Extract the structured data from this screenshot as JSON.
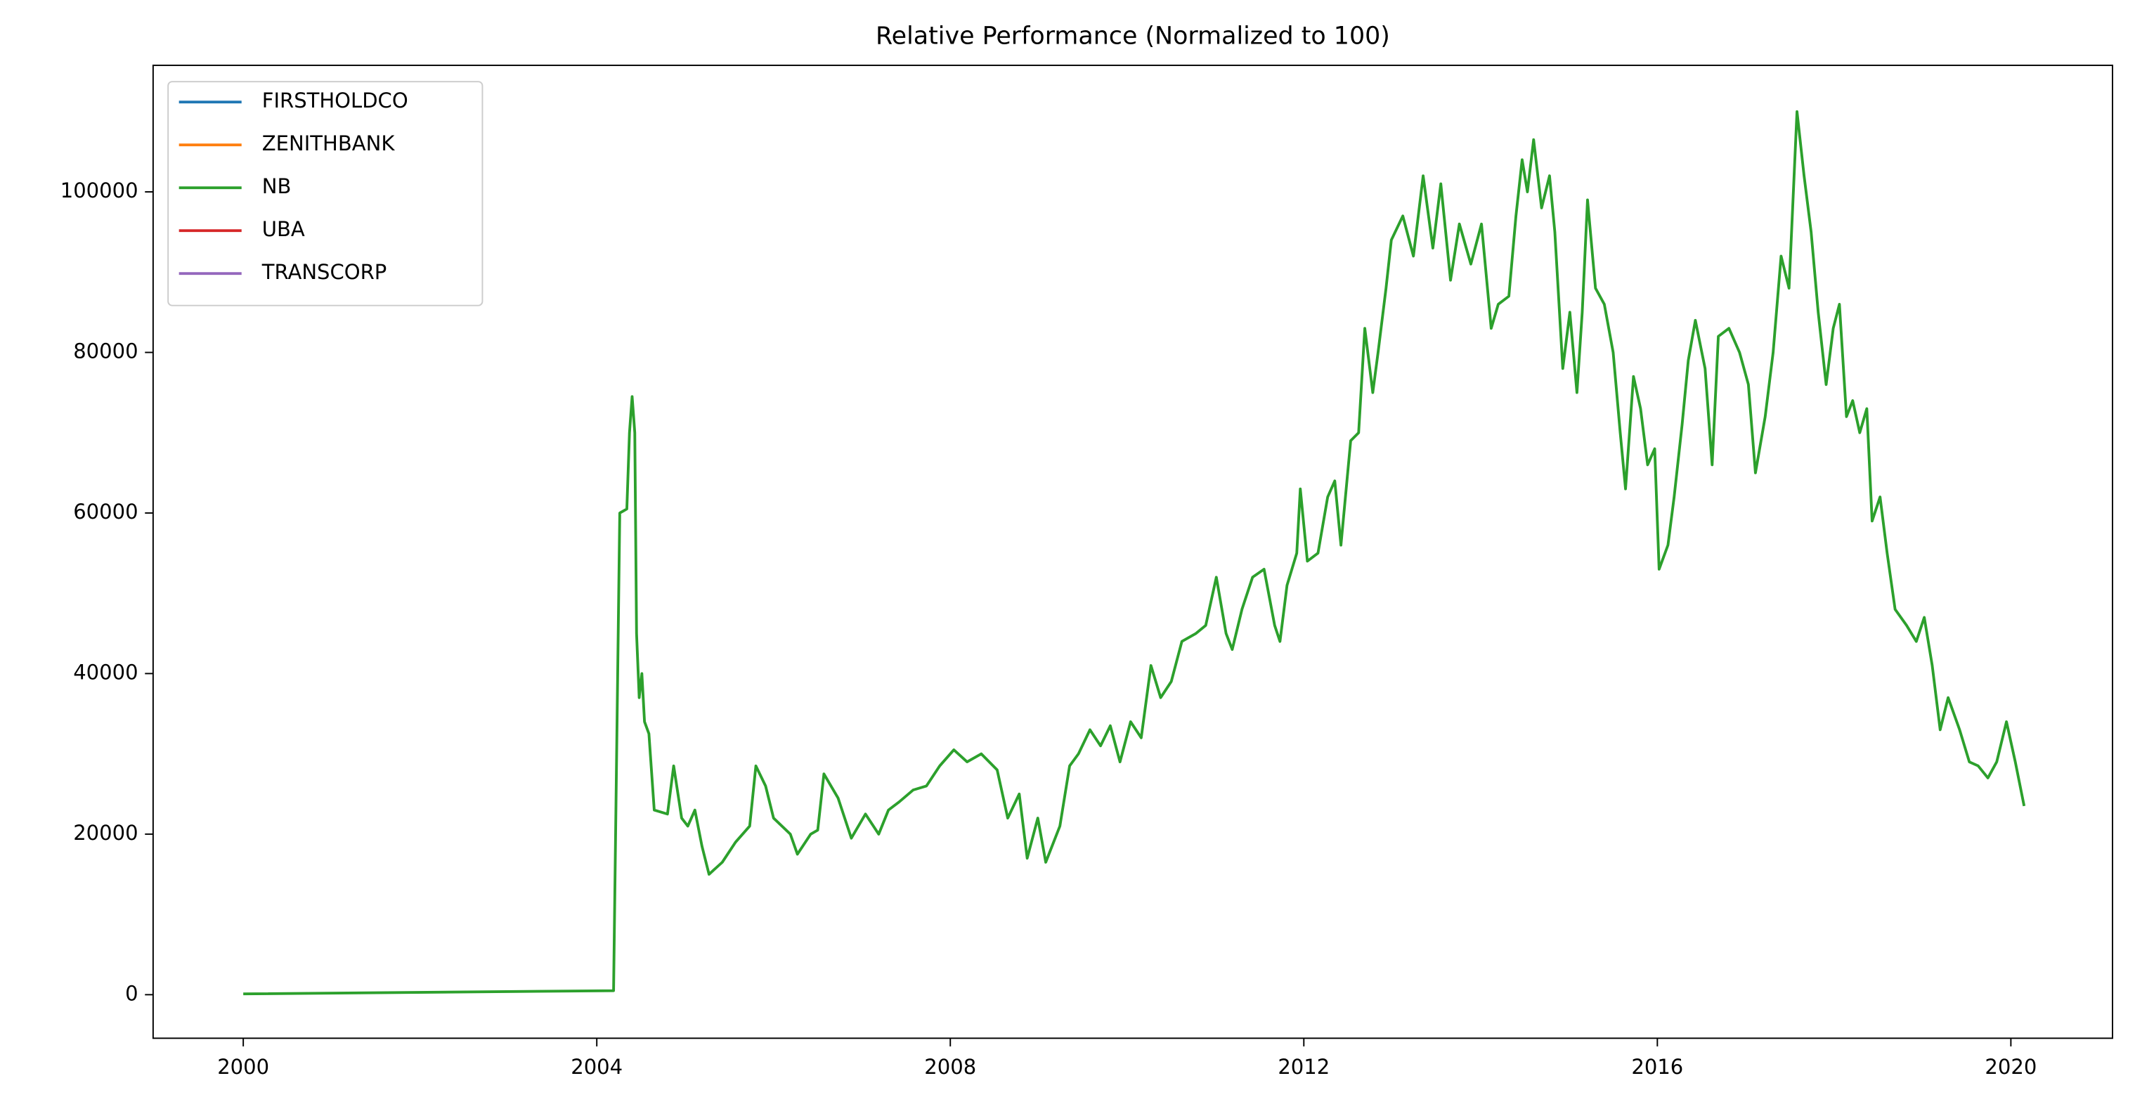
{
  "chart_data": {
    "type": "line",
    "title": "Relative Performance (Normalized to 100)",
    "x": [
      2000.0,
      2004.19,
      2004.26,
      2004.34,
      2004.37,
      2004.4,
      2004.43,
      2004.45,
      2004.48,
      2004.51,
      2004.54,
      2004.59,
      2004.65,
      2004.8,
      2004.87,
      2004.96,
      2005.03,
      2005.11,
      2005.19,
      2005.27,
      2005.42,
      2005.57,
      2005.73,
      2005.8,
      2005.91,
      2006.0,
      2006.19,
      2006.27,
      2006.42,
      2006.5,
      2006.57,
      2006.73,
      2006.88,
      2007.04,
      2007.19,
      2007.3,
      2007.42,
      2007.58,
      2007.73,
      2007.88,
      2008.04,
      2008.19,
      2008.35,
      2008.53,
      2008.65,
      2008.78,
      2008.87,
      2008.99,
      2009.08,
      2009.24,
      2009.35,
      2009.45,
      2009.58,
      2009.7,
      2009.81,
      2009.92,
      2010.04,
      2010.16,
      2010.27,
      2010.38,
      2010.5,
      2010.62,
      2010.78,
      2010.89,
      2011.01,
      2011.12,
      2011.19,
      2011.3,
      2011.42,
      2011.55,
      2011.67,
      2011.73,
      2011.81,
      2011.92,
      2011.96,
      2012.04,
      2012.16,
      2012.27,
      2012.35,
      2012.42,
      2012.53,
      2012.62,
      2012.69,
      2012.78,
      2012.84,
      2012.93,
      2012.99,
      2013.12,
      2013.24,
      2013.35,
      2013.46,
      2013.55,
      2013.66,
      2013.76,
      2013.89,
      2014.01,
      2014.12,
      2014.2,
      2014.32,
      2014.4,
      2014.47,
      2014.53,
      2014.6,
      2014.69,
      2014.78,
      2014.84,
      2014.93,
      2015.01,
      2015.09,
      2015.15,
      2015.21,
      2015.3,
      2015.4,
      2015.5,
      2015.58,
      2015.64,
      2015.73,
      2015.81,
      2015.89,
      2015.97,
      2016.02,
      2016.12,
      2016.19,
      2016.28,
      2016.35,
      2016.43,
      2016.54,
      2016.62,
      2016.69,
      2016.81,
      2016.93,
      2017.03,
      2017.11,
      2017.22,
      2017.31,
      2017.4,
      2017.49,
      2017.58,
      2017.66,
      2017.74,
      2017.82,
      2017.91,
      2017.99,
      2018.06,
      2018.14,
      2018.21,
      2018.29,
      2018.37,
      2018.43,
      2018.52,
      2018.6,
      2018.69,
      2018.82,
      2018.93,
      2019.02,
      2019.11,
      2019.2,
      2019.29,
      2019.42,
      2019.53,
      2019.63,
      2019.74,
      2019.84,
      2019.95,
      2020.05,
      2020.15
    ],
    "series": [
      {
        "name": "FIRSTHOLDCO",
        "color": "#1f77b4",
        "values": [
          null,
          null,
          null,
          null,
          null,
          null,
          null,
          null,
          null,
          null,
          null,
          null,
          null,
          null,
          null,
          null,
          null,
          null,
          null,
          null,
          null,
          null,
          null,
          null,
          null,
          null,
          null,
          null,
          null,
          null,
          null,
          null,
          null,
          null,
          null,
          null,
          null,
          null,
          null,
          null,
          null,
          null,
          null,
          null,
          null,
          null,
          null,
          null,
          null,
          null,
          null,
          null,
          null,
          null,
          null,
          null,
          null,
          null,
          null,
          null,
          null,
          null,
          null,
          null,
          null,
          null,
          null,
          null,
          null,
          null,
          null,
          null,
          null,
          null,
          null,
          null,
          null,
          null,
          null,
          null,
          null,
          null,
          null,
          null,
          null,
          null,
          null,
          null,
          null,
          null,
          null,
          null,
          null,
          null,
          null,
          null,
          null,
          null,
          null,
          null,
          null,
          null,
          null,
          null,
          null,
          null,
          null,
          null,
          null,
          null,
          null,
          null,
          null,
          null,
          null,
          null,
          null,
          null,
          null,
          null,
          null,
          null,
          null,
          null,
          null,
          null,
          null,
          null,
          null,
          null,
          null,
          null,
          null,
          null,
          null,
          null,
          null,
          null,
          null,
          null,
          null,
          null,
          null,
          null,
          null,
          null,
          null,
          null,
          null,
          null,
          null,
          null,
          null,
          null,
          null,
          null,
          null,
          null,
          null,
          null,
          null,
          null,
          null,
          null,
          null,
          null
        ]
      },
      {
        "name": "ZENITHBANK",
        "color": "#ff7f0e",
        "values": [
          null,
          null,
          null,
          null,
          null,
          null,
          null,
          null,
          null,
          null,
          null,
          null,
          null,
          null,
          null,
          null,
          null,
          null,
          null,
          null,
          null,
          null,
          null,
          null,
          null,
          null,
          null,
          null,
          null,
          null,
          null,
          null,
          null,
          null,
          null,
          null,
          null,
          null,
          null,
          null,
          null,
          null,
          null,
          null,
          null,
          null,
          null,
          null,
          null,
          null,
          null,
          null,
          null,
          null,
          null,
          null,
          null,
          null,
          null,
          null,
          null,
          null,
          null,
          null,
          null,
          null,
          null,
          null,
          null,
          null,
          null,
          null,
          null,
          null,
          null,
          null,
          null,
          null,
          null,
          null,
          null,
          null,
          null,
          null,
          null,
          null,
          null,
          null,
          null,
          null,
          null,
          null,
          null,
          null,
          null,
          null,
          null,
          null,
          null,
          null,
          null,
          null,
          null,
          null,
          null,
          null,
          null,
          null,
          null,
          null,
          null,
          null,
          null,
          null,
          null,
          null,
          null,
          null,
          null,
          null,
          null,
          null,
          null,
          null,
          null,
          null,
          null,
          null,
          null,
          null,
          null,
          null,
          null,
          null,
          null,
          null,
          null,
          null,
          null,
          null,
          null,
          null,
          null,
          null,
          null,
          null,
          null,
          null,
          null,
          null,
          null,
          null,
          null,
          null,
          null,
          null,
          null,
          null,
          null,
          null,
          null,
          null,
          null,
          null,
          null,
          null
        ]
      },
      {
        "name": "NB",
        "color": "#2ca02c",
        "values": [
          100,
          500,
          60000,
          60500,
          70000,
          74500,
          70000,
          45000,
          37000,
          40000,
          34000,
          32500,
          23000,
          22500,
          28500,
          22000,
          21000,
          23000,
          18500,
          15000,
          16500,
          19000,
          21000,
          28500,
          26000,
          22000,
          20000,
          17500,
          20000,
          20500,
          27500,
          24500,
          19500,
          22500,
          20000,
          23000,
          24000,
          25500,
          26000,
          28500,
          30500,
          29000,
          30000,
          28000,
          22000,
          25000,
          17000,
          22000,
          16500,
          21000,
          28500,
          30000,
          33000,
          31000,
          33500,
          29000,
          34000,
          32000,
          41000,
          37000,
          39000,
          44000,
          45000,
          46000,
          52000,
          45000,
          43000,
          48000,
          52000,
          53000,
          46000,
          44000,
          51000,
          55000,
          63000,
          54000,
          55000,
          62000,
          64000,
          56000,
          69000,
          70000,
          83000,
          75000,
          80000,
          88000,
          94000,
          97000,
          92000,
          102000,
          93000,
          101000,
          89000,
          96000,
          91000,
          96000,
          83000,
          86000,
          87000,
          97000,
          104000,
          100000,
          106500,
          98000,
          102000,
          95000,
          78000,
          85000,
          75000,
          85000,
          99000,
          88000,
          86000,
          80000,
          70000,
          63000,
          77000,
          73000,
          66000,
          68000,
          53000,
          56000,
          62000,
          71000,
          79000,
          84000,
          78000,
          66000,
          82000,
          83000,
          80000,
          76000,
          65000,
          72000,
          80000,
          92000,
          88000,
          110000,
          102000,
          95000,
          85000,
          76000,
          83000,
          86000,
          72000,
          74000,
          70000,
          73000,
          59000,
          62000,
          55000,
          48000,
          46000,
          44000,
          47000,
          41000,
          33000,
          37000,
          33000,
          29000,
          28500,
          27000,
          29000,
          34000,
          29000,
          23500
        ]
      },
      {
        "name": "UBA",
        "color": "#d62728",
        "values": [
          null,
          null,
          null,
          null,
          null,
          null,
          null,
          null,
          null,
          null,
          null,
          null,
          null,
          null,
          null,
          null,
          null,
          null,
          null,
          null,
          null,
          null,
          null,
          null,
          null,
          null,
          null,
          null,
          null,
          null,
          null,
          null,
          null,
          null,
          null,
          null,
          null,
          null,
          null,
          null,
          null,
          null,
          null,
          null,
          null,
          null,
          null,
          null,
          null,
          null,
          null,
          null,
          null,
          null,
          null,
          null,
          null,
          null,
          null,
          null,
          null,
          null,
          null,
          null,
          null,
          null,
          null,
          null,
          null,
          null,
          null,
          null,
          null,
          null,
          null,
          null,
          null,
          null,
          null,
          null,
          null,
          null,
          null,
          null,
          null,
          null,
          null,
          null,
          null,
          null,
          null,
          null,
          null,
          null,
          null,
          null,
          null,
          null,
          null,
          null,
          null,
          null,
          null,
          null,
          null,
          null,
          null,
          null,
          null,
          null,
          null,
          null,
          null,
          null,
          null,
          null,
          null,
          null,
          null,
          null,
          null,
          null,
          null,
          null,
          null,
          null,
          null,
          null,
          null,
          null,
          null,
          null,
          null,
          null,
          null,
          null,
          null,
          null,
          null,
          null,
          null,
          null,
          null,
          null,
          null,
          null,
          null,
          null,
          null,
          null,
          null,
          null,
          null,
          null,
          null,
          null,
          null,
          null,
          null,
          null,
          null,
          null,
          null,
          null,
          null,
          null
        ]
      },
      {
        "name": "TRANSCORP",
        "color": "#9467bd",
        "values": [
          null,
          null,
          null,
          null,
          null,
          null,
          null,
          null,
          null,
          null,
          null,
          null,
          null,
          null,
          null,
          null,
          null,
          null,
          null,
          null,
          null,
          null,
          null,
          null,
          null,
          null,
          null,
          null,
          null,
          null,
          null,
          null,
          null,
          null,
          null,
          null,
          null,
          null,
          null,
          null,
          null,
          null,
          null,
          null,
          null,
          null,
          null,
          null,
          null,
          null,
          null,
          null,
          null,
          null,
          null,
          null,
          null,
          null,
          null,
          null,
          null,
          null,
          null,
          null,
          null,
          null,
          null,
          null,
          null,
          null,
          null,
          null,
          null,
          null,
          null,
          null,
          null,
          null,
          null,
          null,
          null,
          null,
          null,
          null,
          null,
          null,
          null,
          null,
          null,
          null,
          null,
          null,
          null,
          null,
          null,
          null,
          null,
          null,
          null,
          null,
          null,
          null,
          null,
          null,
          null,
          null,
          null,
          null,
          null,
          null,
          null,
          null,
          null,
          null,
          null,
          null,
          null,
          null,
          null,
          null,
          null,
          null,
          null,
          null,
          null,
          null,
          null,
          null,
          null,
          null,
          null,
          null,
          null,
          null,
          null,
          null,
          null,
          null,
          null,
          null,
          null,
          null,
          null,
          null,
          null,
          null,
          null,
          null,
          null,
          null,
          null,
          null,
          null,
          null,
          null,
          null,
          null,
          null,
          null,
          null,
          null,
          null,
          null,
          null,
          null,
          null
        ]
      }
    ],
    "xlim": [
      1998.98,
      2021.15
    ],
    "xticks": [
      2000,
      2004,
      2008,
      2012,
      2016,
      2020
    ],
    "ylim": [
      -5424,
      115763
    ],
    "yticks": [
      0,
      20000,
      40000,
      60000,
      80000,
      100000
    ],
    "legend": "upper left",
    "grid": false
  }
}
